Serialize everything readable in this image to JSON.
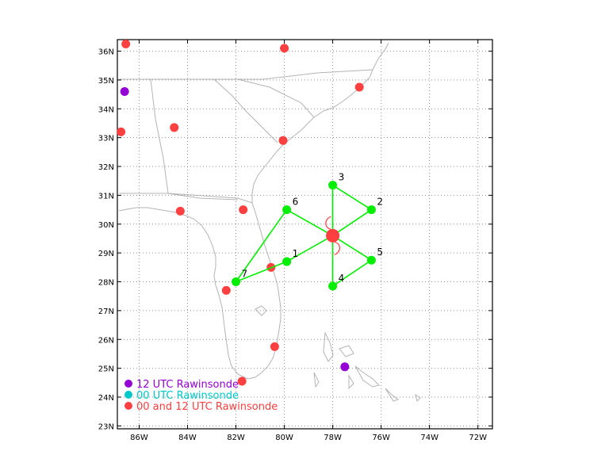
{
  "legend": [
    {
      "label": "12 UTC Rawinsonde",
      "color": "#9400d3"
    },
    {
      "label": "00 UTC Rawinsonde",
      "color": "#00c8c8"
    },
    {
      "label": "00 and 12 UTC Rawinsonde",
      "color": "#ff4040"
    }
  ],
  "map_data": {
    "lon_range": [
      -86.9,
      -71.4
    ],
    "lat_range": [
      22.9,
      36.4
    ],
    "x_ticks": [
      {
        "lon": -86,
        "label": "86W"
      },
      {
        "lon": -84,
        "label": "84W"
      },
      {
        "lon": -82,
        "label": "82W"
      },
      {
        "lon": -80,
        "label": "80W"
      },
      {
        "lon": -78,
        "label": "78W"
      },
      {
        "lon": -76,
        "label": "76W"
      },
      {
        "lon": -74,
        "label": "74W"
      },
      {
        "lon": -72,
        "label": "72W"
      }
    ],
    "y_ticks": [
      {
        "lat": 23,
        "label": "23N"
      },
      {
        "lat": 24,
        "label": "24N"
      },
      {
        "lat": 25,
        "label": "25N"
      },
      {
        "lat": 26,
        "label": "26N"
      },
      {
        "lat": 27,
        "label": "27N"
      },
      {
        "lat": 28,
        "label": "28N"
      },
      {
        "lat": 29,
        "label": "29N"
      },
      {
        "lat": 30,
        "label": "30N"
      },
      {
        "lat": 31,
        "label": "31N"
      },
      {
        "lat": 32,
        "label": "32N"
      },
      {
        "lat": 33,
        "label": "33N"
      },
      {
        "lat": 34,
        "label": "34N"
      },
      {
        "lat": 35,
        "label": "35N"
      },
      {
        "lat": 36,
        "label": "36N"
      }
    ],
    "storm_center": {
      "lon": -78.0,
      "lat": 29.6,
      "color": "#ff4040"
    },
    "network_points": [
      {
        "id": "1",
        "lon": -79.9,
        "lat": 28.7
      },
      {
        "id": "2",
        "lon": -76.4,
        "lat": 30.5
      },
      {
        "id": "3",
        "lon": -78.0,
        "lat": 31.35
      },
      {
        "id": "4",
        "lon": -78.0,
        "lat": 27.85
      },
      {
        "id": "5",
        "lon": -76.4,
        "lat": 28.75
      },
      {
        "id": "6",
        "lon": -79.9,
        "lat": 30.5
      },
      {
        "id": "7",
        "lon": -82.0,
        "lat": 28.0
      }
    ],
    "network_links": [
      [
        "7",
        "1"
      ],
      [
        "1",
        "C"
      ],
      [
        "C",
        "6"
      ],
      [
        "6",
        "7"
      ],
      [
        "3",
        "C"
      ],
      [
        "C",
        "4"
      ],
      [
        "3",
        "2"
      ],
      [
        "2",
        "C"
      ],
      [
        "C",
        "5"
      ],
      [
        "5",
        "4"
      ]
    ],
    "network_color": "#00ee00",
    "stations_00_and_12": [
      {
        "lon": -86.55,
        "lat": 36.25
      },
      {
        "lon": -80.0,
        "lat": 36.1
      },
      {
        "lon": -76.9,
        "lat": 34.75
      },
      {
        "lon": -84.55,
        "lat": 33.35
      },
      {
        "lon": -86.75,
        "lat": 33.2
      },
      {
        "lon": -80.05,
        "lat": 32.9
      },
      {
        "lon": -84.3,
        "lat": 30.45
      },
      {
        "lon": -81.7,
        "lat": 30.5
      },
      {
        "lon": -80.55,
        "lat": 28.5
      },
      {
        "lon": -82.4,
        "lat": 27.7
      },
      {
        "lon": -80.4,
        "lat": 25.75
      },
      {
        "lon": -81.75,
        "lat": 24.55
      }
    ],
    "stations_12": [
      {
        "lon": -86.6,
        "lat": 34.6
      },
      {
        "lon": -77.5,
        "lat": 25.05
      }
    ],
    "land_color": "#b4b4b4",
    "grid": true
  }
}
